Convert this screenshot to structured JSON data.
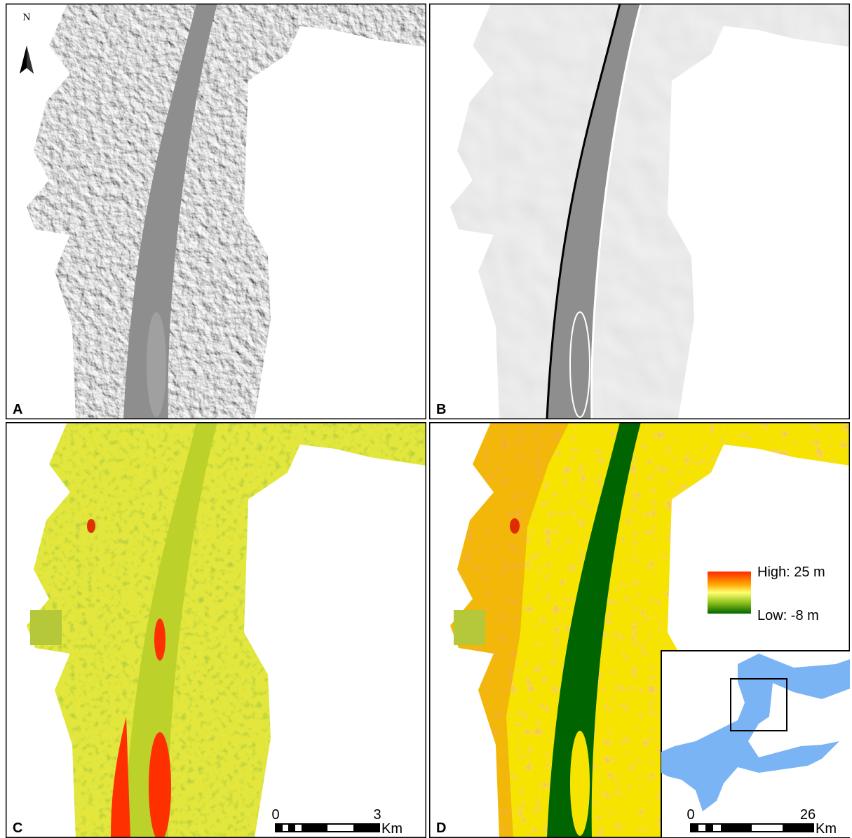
{
  "panels": [
    {
      "label": "A"
    },
    {
      "label": "B"
    },
    {
      "label": "C"
    },
    {
      "label": "D"
    }
  ],
  "north_arrow": {
    "label": "N"
  },
  "legend": {
    "high": "High: 25 m",
    "low": "Low: -8 m"
  },
  "scale_bars": [
    {
      "start": "0",
      "end": "3",
      "unit": "Km"
    },
    {
      "start": "0",
      "end": "26",
      "unit": "Km"
    }
  ]
}
